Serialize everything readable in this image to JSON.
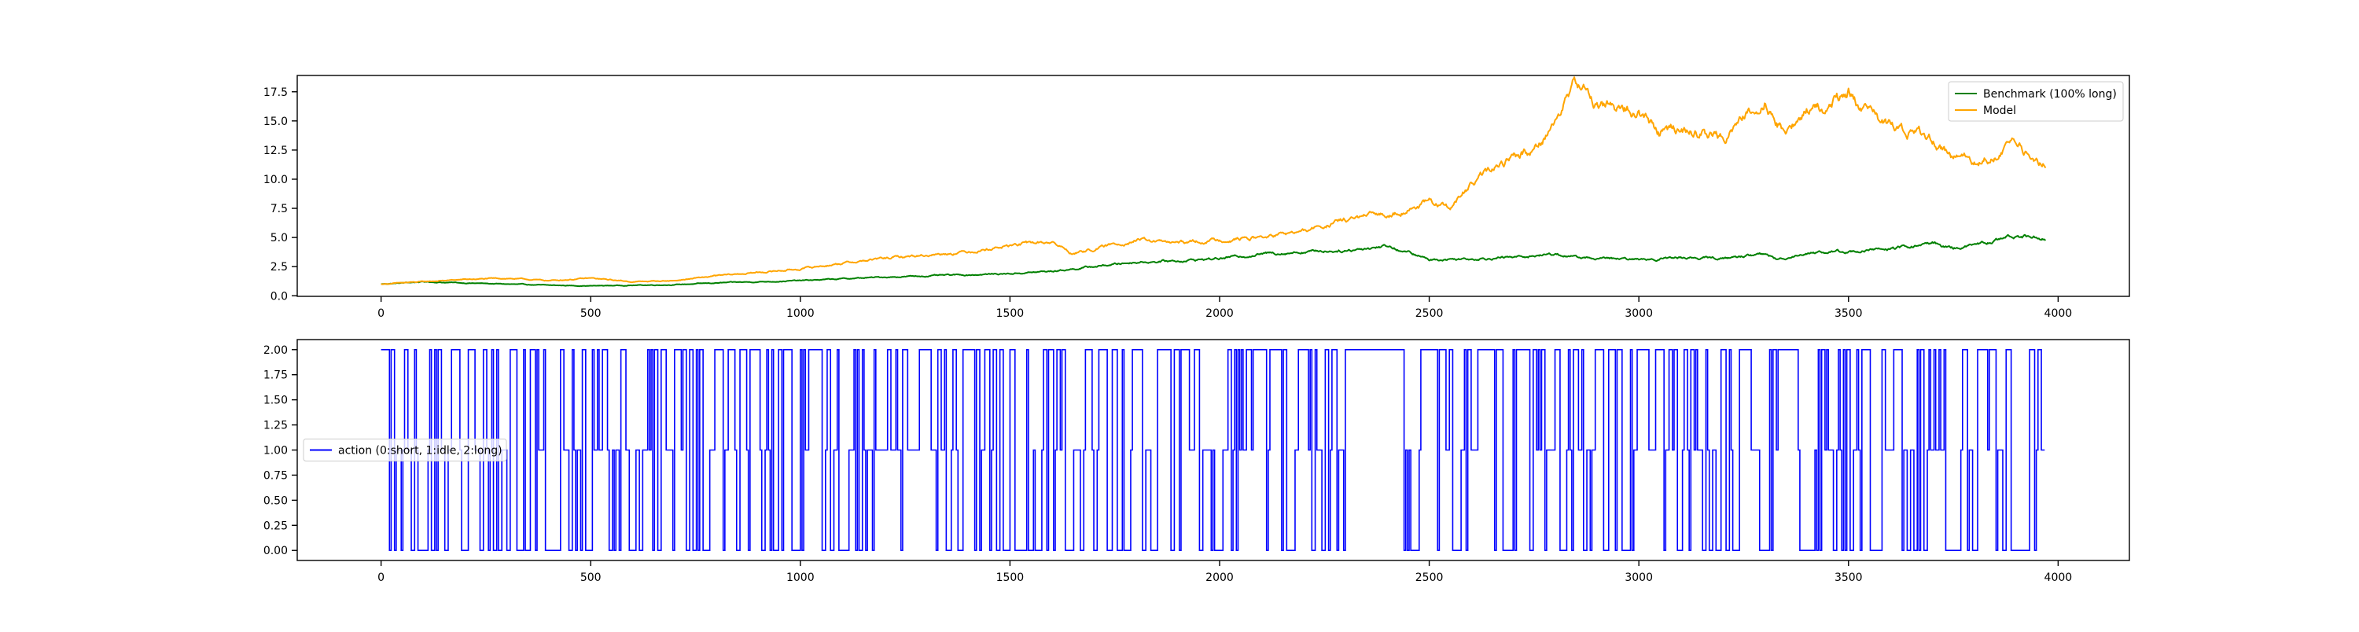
{
  "chart_data": [
    {
      "type": "line",
      "title": "",
      "xlabel": "",
      "ylabel": "",
      "xlim": [
        -200,
        4170
      ],
      "ylim": [
        -0.05,
        18.9
      ],
      "xticks": [
        0,
        500,
        1000,
        1500,
        2000,
        2500,
        3000,
        3500,
        4000
      ],
      "yticks": [
        "0.0",
        "2.5",
        "5.0",
        "7.5",
        "10.0",
        "12.5",
        "15.0",
        "17.5"
      ],
      "grid": false,
      "legend_position": "top-right",
      "series": [
        {
          "name": "Benchmark (100% long)",
          "color": "#008000",
          "x": [
            0,
            100,
            200,
            300,
            400,
            500,
            600,
            700,
            800,
            900,
            1000,
            1100,
            1200,
            1300,
            1400,
            1500,
            1600,
            1700,
            1800,
            1900,
            2000,
            2100,
            2200,
            2300,
            2400,
            2500,
            2600,
            2700,
            2800,
            2850,
            2900,
            3000,
            3100,
            3200,
            3300,
            3330,
            3400,
            3500,
            3600,
            3700,
            3750,
            3800,
            3900,
            3970
          ],
          "y": [
            1.0,
            1.2,
            1.1,
            1.0,
            0.9,
            0.85,
            0.9,
            0.95,
            1.1,
            1.2,
            1.3,
            1.45,
            1.6,
            1.7,
            1.8,
            1.9,
            2.1,
            2.5,
            2.9,
            3.0,
            3.2,
            3.6,
            3.8,
            3.9,
            4.3,
            3.1,
            3.2,
            3.3,
            3.6,
            3.3,
            3.2,
            3.1,
            3.3,
            3.2,
            3.6,
            3.1,
            3.7,
            3.8,
            4.0,
            4.5,
            4.1,
            4.3,
            5.2,
            4.9
          ]
        },
        {
          "name": "Model",
          "color": "#ffa500",
          "x": [
            0,
            100,
            200,
            300,
            400,
            500,
            600,
            700,
            800,
            900,
            1000,
            1100,
            1200,
            1300,
            1400,
            1500,
            1550,
            1600,
            1650,
            1700,
            1800,
            1900,
            2000,
            2100,
            2200,
            2300,
            2400,
            2500,
            2550,
            2600,
            2700,
            2750,
            2800,
            2850,
            2900,
            3000,
            3050,
            3100,
            3200,
            3300,
            3330,
            3350,
            3400,
            3450,
            3500,
            3550,
            3600,
            3700,
            3750,
            3800,
            3900,
            3970
          ],
          "y": [
            1.0,
            1.2,
            1.4,
            1.5,
            1.3,
            1.5,
            1.2,
            1.3,
            1.7,
            2.0,
            2.3,
            2.8,
            3.2,
            3.5,
            3.8,
            4.3,
            4.5,
            4.6,
            3.6,
            4.0,
            4.8,
            4.5,
            4.8,
            5.0,
            5.5,
            6.5,
            7.0,
            8.0,
            7.5,
            9.5,
            12.0,
            12.5,
            15.0,
            18.3,
            16.5,
            15.8,
            14.0,
            14.3,
            13.5,
            17.0,
            15.0,
            14.0,
            15.8,
            16.3,
            17.5,
            15.5,
            14.5,
            13.5,
            12.0,
            11.5,
            12.8,
            11.2
          ]
        }
      ]
    },
    {
      "type": "line",
      "title": "",
      "xlabel": "",
      "ylabel": "",
      "xlim": [
        -200,
        4170
      ],
      "ylim": [
        -0.1,
        2.1
      ],
      "xticks": [
        0,
        500,
        1000,
        1500,
        2000,
        2500,
        3000,
        3500,
        4000
      ],
      "yticks": [
        "0.00",
        "0.25",
        "0.50",
        "0.75",
        "1.00",
        "1.25",
        "1.50",
        "1.75",
        "2.00"
      ],
      "grid": false,
      "legend_position": "center-left",
      "series": [
        {
          "name": "action (0:short, 1:idle, 2:long)",
          "color": "#0000ff",
          "x_start": 0,
          "x_end": 3970,
          "levels": [
            0,
            1,
            2
          ],
          "flat_segments": [
            {
              "x": [
                0,
                18
              ],
              "level": 2
            },
            {
              "x": [
                2300,
                2420
              ],
              "level": 2
            },
            {
              "x": [
                3960,
                3970
              ],
              "level": 1
            }
          ]
        }
      ]
    }
  ]
}
